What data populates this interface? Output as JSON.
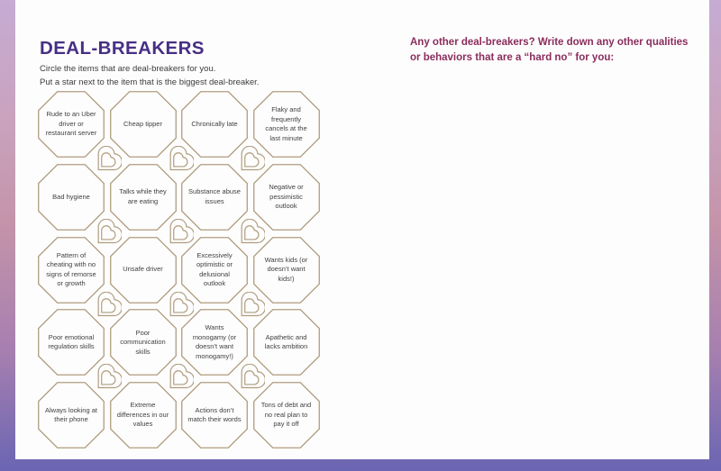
{
  "colors": {
    "title": "#472f85",
    "prompt": "#8a2c5c",
    "octagon_stroke": "#b09c7e",
    "gradient_top": "#c6abd3",
    "gradient_mid": "#c493a9",
    "gradient_bottom": "#6a65b2"
  },
  "left_page": {
    "title": "DEAL-BREAKERS",
    "instructions": [
      "Circle the items that are deal-breakers for you.",
      "Put a star next to the item that is the biggest deal-breaker."
    ],
    "items": [
      "Rude to an Uber driver or restaurant server",
      "Cheap tipper",
      "Chronically late",
      "Flaky and frequently cancels at the last minute",
      "Bad hygiene",
      "Talks while they are eating",
      "Substance abuse issues",
      "Negative or pessimistic outlook",
      "Pattern of cheating with no signs of remorse or growth",
      "Unsafe driver",
      "Excessively optimistic or delusional outlook",
      "Wants kids (or doesn’t want kids!)",
      "Poor emotional regulation skills",
      "Poor communication skills",
      "Wants monogamy (or doesn’t want monogamy!)",
      "Apathetic and lacks ambition",
      "Always looking at their phone",
      "Extreme differences in our values",
      "Actions don’t match their words",
      "Tons of debt and no real plan to pay it off"
    ]
  },
  "right_page": {
    "prompt": "Any other deal-breakers? Write down any other qualities or behaviors that are a “hard no” for you:"
  }
}
